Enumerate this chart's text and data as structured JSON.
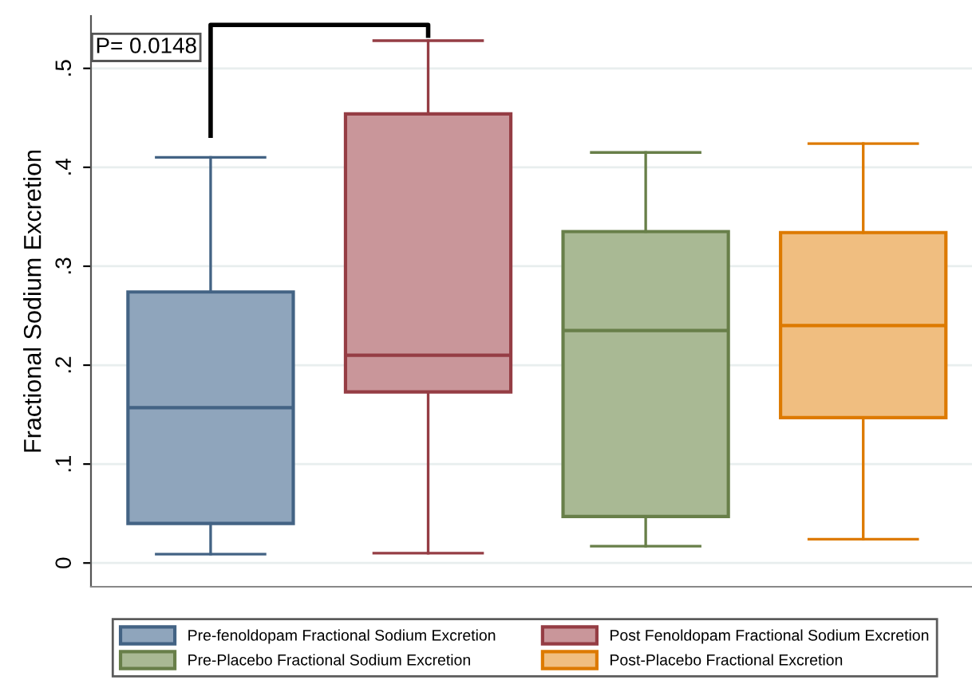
{
  "chart_data": {
    "type": "box",
    "ylabel": "Fractional Sodium Excretion",
    "categories": [
      null,
      null,
      null,
      null
    ],
    "series": [
      {
        "name": "Pre-fenoldopam Fractional Sodium Excretion",
        "color": "#8fa5bc",
        "boxes": [
          {
            "low": 0.009,
            "q1": 0.04,
            "median": 0.157,
            "q3": 0.274,
            "high": 0.41
          },
          null,
          null,
          null
        ]
      },
      {
        "name": "Post Fenoldopam Fractional Sodium Excretion",
        "color": "#c9969a",
        "boxes": [
          null,
          {
            "low": 0.01,
            "q1": 0.173,
            "median": 0.21,
            "q3": 0.454,
            "high": 0.528
          },
          null,
          null
        ]
      },
      {
        "name": "Pre-Placebo Fractional Sodium Excretion",
        "color": "#a9b994",
        "boxes": [
          null,
          null,
          {
            "low": 0.017,
            "q1": 0.047,
            "median": 0.235,
            "q3": 0.335,
            "high": 0.415
          },
          null
        ]
      },
      {
        "name": "Post-Placebo Fractional Excretion",
        "color": "#f0be80",
        "boxes": [
          null,
          null,
          null,
          {
            "low": 0.024,
            "q1": 0.147,
            "median": 0.24,
            "q3": 0.334,
            "high": 0.424
          }
        ]
      }
    ],
    "annotations": [
      "P= 0.0148"
    ],
    "ylim": [
      -0.024,
      0.553
    ],
    "yticks": [
      {
        "value": 0,
        "label": "0"
      },
      {
        "value": 0.1,
        "label": ".1"
      },
      {
        "value": 0.2,
        "label": ".2"
      },
      {
        "value": 0.3,
        "label": ".3"
      },
      {
        "value": 0.4,
        "label": ".4"
      },
      {
        "value": 0.5,
        "label": ".5"
      }
    ],
    "grid": "y",
    "legend": "bottom"
  }
}
